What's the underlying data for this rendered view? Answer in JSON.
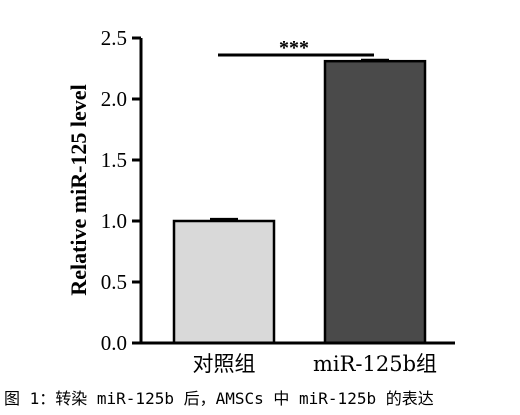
{
  "chart_data": {
    "type": "bar",
    "categories": [
      "对照组",
      "miR-125b组"
    ],
    "values": [
      1.0,
      2.31
    ],
    "errors": [
      0.015,
      0.01
    ],
    "ylabel": "Relative miR-125 level",
    "xlabel": "",
    "ylim": [
      0,
      2.5
    ],
    "yticks": [
      "0.0",
      "0.5",
      "1.0",
      "1.5",
      "2.0",
      "2.5"
    ],
    "bar_colors": [
      "#d9d9d9",
      "#4a4a4a"
    ],
    "significance": "***",
    "grid": false,
    "legend": "none"
  },
  "caption": "图 1：转染 miR-125b 后，AMSCs 中 miR-125b 的表达"
}
